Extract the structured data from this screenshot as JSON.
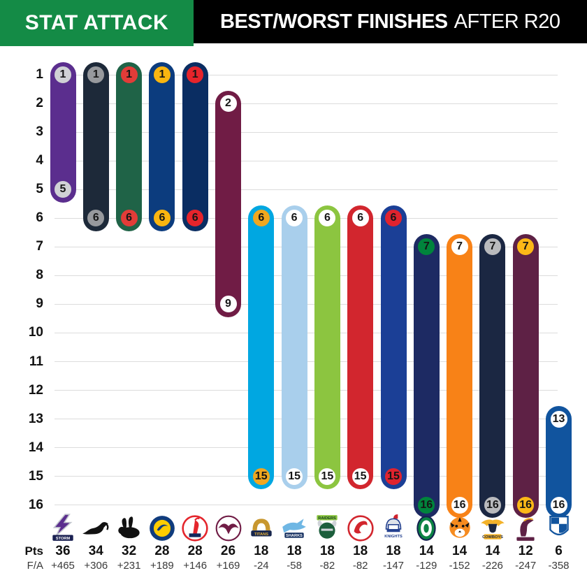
{
  "header": {
    "badge_label": "STAT ATTACK",
    "title_bold": "BEST/WORST FINISHES",
    "title_regular": "AFTER R20",
    "badge_bg": "#148b46",
    "title_bg": "#000000"
  },
  "footer_labels": {
    "pts": "Pts",
    "fa": "F/A"
  },
  "chart_data": {
    "type": "range-bar",
    "title": "BEST/WORST FINISHES AFTER R20",
    "y_axis": {
      "label": "ladder finish position",
      "min": 1,
      "max": 16,
      "ticks": [
        1,
        2,
        3,
        4,
        5,
        6,
        7,
        8,
        9,
        10,
        11,
        12,
        13,
        14,
        15,
        16
      ]
    },
    "grid": true,
    "teams": [
      {
        "name": "Storm",
        "best": 1,
        "worst": 5,
        "pts": "36",
        "fa": "+465",
        "bar_color": "#5b2e8e",
        "end_fill": "#d0d1d5",
        "logo": {
          "icon": "storm-logo-icon",
          "primary": "#5b2e8e",
          "secondary": "#1a2052",
          "accent": "#c3c6cf",
          "wordmark": "STORM"
        }
      },
      {
        "name": "Panthers",
        "best": 1,
        "worst": 6,
        "pts": "34",
        "fa": "+306",
        "bar_color": "#1d2939",
        "end_fill": "#97999d",
        "logo": {
          "icon": "panthers-logo-icon",
          "primary": "#111111",
          "secondary": "#111111",
          "accent": "#111111"
        }
      },
      {
        "name": "Rabbitohs",
        "best": 1,
        "worst": 6,
        "pts": "32",
        "fa": "+231",
        "bar_color": "#1f6347",
        "end_fill": "#e23c38",
        "logo": {
          "icon": "rabbitohs-logo-icon",
          "primary": "#111111",
          "secondary": "#111111",
          "accent": "#111111"
        }
      },
      {
        "name": "Eels",
        "best": 1,
        "worst": 6,
        "pts": "28",
        "fa": "+189",
        "bar_color": "#0c3c7e",
        "end_fill": "#f9b510",
        "logo": {
          "icon": "eels-logo-icon",
          "primary": "#103c7d",
          "secondary": "#ffcd00",
          "accent": "#103c7d"
        }
      },
      {
        "name": "Roosters",
        "best": 1,
        "worst": 6,
        "pts": "28",
        "fa": "+146",
        "bar_color": "#0a2d62",
        "end_fill": "#e6242b",
        "logo": {
          "icon": "roosters-logo-icon",
          "primary": "#e4252c",
          "secondary": "#12275d",
          "accent": "#ffffff"
        }
      },
      {
        "name": "Sea Eagles",
        "best": 2,
        "worst": 9,
        "pts": "26",
        "fa": "+169",
        "bar_color": "#701c45",
        "end_fill": "#ffffff",
        "logo": {
          "icon": "seaeagles-logo-icon",
          "primary": "#701c45",
          "secondary": "#701c45",
          "accent": "#ffffff"
        }
      },
      {
        "name": "Titans",
        "best": 6,
        "worst": 15,
        "pts": "18",
        "fa": "-24",
        "bar_color": "#00a7e1",
        "end_fill": "#f0a71f",
        "logo": {
          "icon": "titans-logo-icon",
          "primary": "#16254c",
          "secondary": "#c8972f",
          "accent": "#e9b33a",
          "wordmark": "TITANS"
        }
      },
      {
        "name": "Sharks",
        "best": 6,
        "worst": 15,
        "pts": "18",
        "fa": "-58",
        "bar_color": "#a9cfec",
        "end_fill": "#ffffff",
        "logo": {
          "icon": "sharks-logo-icon",
          "primary": "#0f2a5c",
          "secondary": "#6fb7e4",
          "accent": "#ffffff",
          "wordmark": "SHARKS"
        }
      },
      {
        "name": "Raiders",
        "best": 6,
        "worst": 15,
        "pts": "18",
        "fa": "-82",
        "bar_color": "#8cc540",
        "end_fill": "#ffffff",
        "logo": {
          "icon": "raiders-logo-icon",
          "primary": "#1c5e3c",
          "secondary": "#8cc540",
          "accent": "#cfd3d8",
          "wordmark": "RAIDERS"
        }
      },
      {
        "name": "Dragons",
        "best": 6,
        "worst": 15,
        "pts": "18",
        "fa": "-82",
        "bar_color": "#d2262e",
        "end_fill": "#ffffff",
        "logo": {
          "icon": "dragons-logo-icon",
          "primary": "#d2262e",
          "secondary": "#d2262e",
          "accent": "#ffffff"
        }
      },
      {
        "name": "Knights",
        "best": 6,
        "worst": 15,
        "pts": "18",
        "fa": "-147",
        "bar_color": "#1b3f96",
        "end_fill": "#e0232e",
        "logo": {
          "icon": "knights-logo-icon",
          "primary": "#23408f",
          "secondary": "#d0232e",
          "accent": "#dfe3ea",
          "wordmark": "KNIGHTS"
        }
      },
      {
        "name": "Warriors",
        "best": 7,
        "worst": 16,
        "pts": "14",
        "fa": "-129",
        "bar_color": "#1d2a63",
        "end_fill": "#00843c",
        "logo": {
          "icon": "warriors-logo-icon",
          "primary": "#0c8344",
          "secondary": "#13204f",
          "accent": "#ffffff"
        }
      },
      {
        "name": "Wests Tigers",
        "best": 7,
        "worst": 16,
        "pts": "14",
        "fa": "-152",
        "bar_color": "#f88217",
        "end_fill": "#ffffff",
        "logo": {
          "icon": "tigers-logo-icon",
          "primary": "#f68b1f",
          "secondary": "#141414",
          "accent": "#ffffff"
        }
      },
      {
        "name": "Cowboys",
        "best": 7,
        "worst": 16,
        "pts": "14",
        "fa": "-226",
        "bar_color": "#1b2742",
        "end_fill": "#b9babd",
        "logo": {
          "icon": "cowboys-logo-icon",
          "primary": "#1b2742",
          "secondary": "#f3b229",
          "accent": "#1b2742",
          "wordmark": "COWBOYS"
        }
      },
      {
        "name": "Broncos",
        "best": 7,
        "worst": 16,
        "pts": "12",
        "fa": "-247",
        "bar_color": "#5e2145",
        "end_fill": "#fcb817",
        "logo": {
          "icon": "broncos-logo-icon",
          "primary": "#5e2145",
          "secondary": "#f3b229",
          "accent": "#5e2145"
        }
      },
      {
        "name": "Bulldogs",
        "best": 13,
        "worst": 16,
        "pts": "6",
        "fa": "-358",
        "bar_color": "#11549e",
        "end_fill": "#ffffff",
        "logo": {
          "icon": "bulldogs-logo-icon",
          "primary": "#11549e",
          "secondary": "#11549e",
          "accent": "#ffffff"
        }
      }
    ]
  }
}
